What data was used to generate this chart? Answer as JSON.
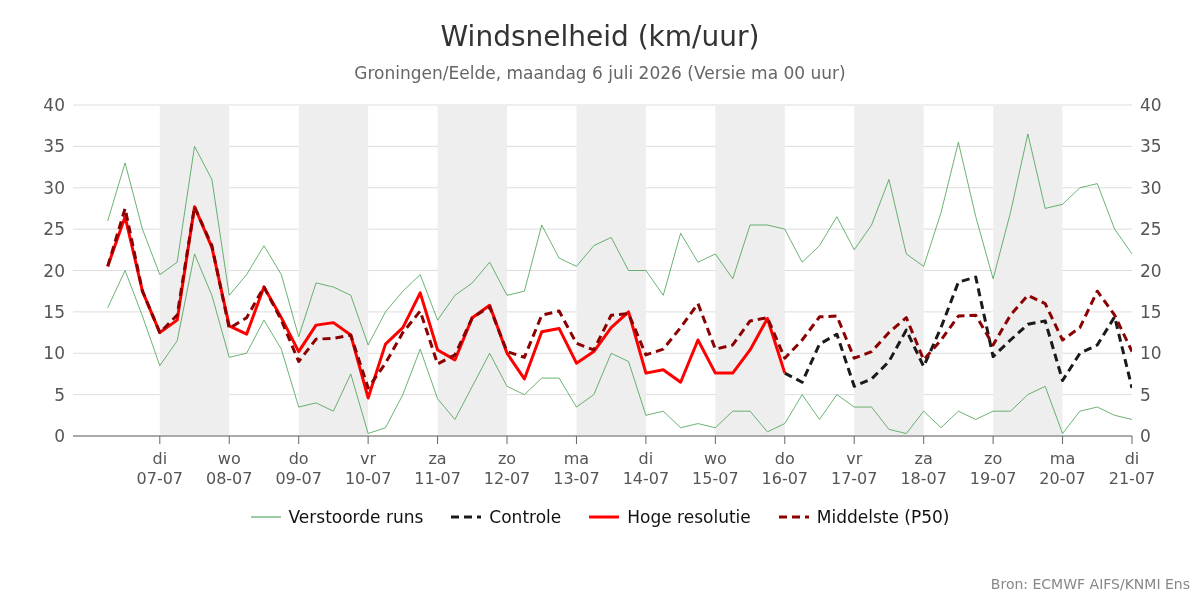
{
  "chart_data": {
    "type": "line",
    "title": "Windsnelheid (km/uur)",
    "subtitle": "Groningen/Eelde, maandag  6 juli 2026 (Versie ma 00 uur)",
    "x": [
      "2026-07-06T06:00",
      "2026-07-06T12:00",
      "2026-07-06T18:00",
      "2026-07-07T00:00",
      "2026-07-07T06:00",
      "2026-07-07T12:00",
      "2026-07-07T18:00",
      "2026-07-08T00:00",
      "2026-07-08T06:00",
      "2026-07-08T12:00",
      "2026-07-08T18:00",
      "2026-07-09T00:00",
      "2026-07-09T06:00",
      "2026-07-09T12:00",
      "2026-07-09T18:00",
      "2026-07-10T00:00",
      "2026-07-10T06:00",
      "2026-07-10T12:00",
      "2026-07-10T18:00",
      "2026-07-11T00:00",
      "2026-07-11T06:00",
      "2026-07-11T12:00",
      "2026-07-11T18:00",
      "2026-07-12T00:00",
      "2026-07-12T06:00",
      "2026-07-12T12:00",
      "2026-07-12T18:00",
      "2026-07-13T00:00",
      "2026-07-13T06:00",
      "2026-07-13T12:00",
      "2026-07-13T18:00",
      "2026-07-14T00:00",
      "2026-07-14T06:00",
      "2026-07-14T12:00",
      "2026-07-14T18:00",
      "2026-07-15T00:00",
      "2026-07-15T06:00",
      "2026-07-15T12:00",
      "2026-07-15T18:00",
      "2026-07-16T00:00",
      "2026-07-16T06:00",
      "2026-07-16T12:00",
      "2026-07-16T18:00",
      "2026-07-17T00:00",
      "2026-07-17T06:00",
      "2026-07-17T12:00",
      "2026-07-17T18:00",
      "2026-07-18T00:00",
      "2026-07-18T06:00",
      "2026-07-18T12:00",
      "2026-07-18T18:00",
      "2026-07-19T00:00",
      "2026-07-19T06:00",
      "2026-07-19T12:00",
      "2026-07-19T18:00",
      "2026-07-20T00:00",
      "2026-07-20T06:00",
      "2026-07-20T12:00",
      "2026-07-20T18:00",
      "2026-07-21T00:00"
    ],
    "series": [
      {
        "name": "Verstoorde runs",
        "color": "#3a9a45",
        "line_style": "solid",
        "values": [
          26,
          33,
          25,
          19.5,
          21,
          35,
          31,
          17,
          19.5,
          23,
          19.5,
          12,
          18.5,
          18,
          17,
          11,
          15,
          17.5,
          19.5,
          14,
          17,
          18.5,
          21,
          17,
          17.5,
          25.5,
          21.5,
          20.5,
          23,
          24,
          20,
          20,
          17,
          24.5,
          21,
          22,
          19,
          25.5,
          25.5,
          25,
          21,
          23,
          26.5,
          22.5,
          25.5,
          31,
          22,
          20.5,
          27,
          35.5,
          26.5,
          19,
          27,
          36.5,
          27.5,
          28,
          30,
          30.5,
          25,
          22
        ]
      },
      {
        "color": "#3a9a45",
        "line_style": "solid",
        "values": [
          15.5,
          20,
          14.5,
          8.5,
          11.5,
          22,
          17,
          9.5,
          10,
          14,
          10.5,
          3.5,
          4,
          3,
          7.5,
          0.3,
          1,
          5,
          10.5,
          4.5,
          2,
          6,
          10,
          6,
          5,
          7,
          7,
          3.5,
          5,
          10,
          9,
          2.5,
          3,
          1,
          1.5,
          1,
          3,
          3,
          0.5,
          1.5,
          5,
          2,
          5,
          3.5,
          3.5,
          0.8,
          0.3,
          3,
          1,
          3,
          2,
          3,
          3,
          5,
          6,
          0.3,
          3,
          3.5,
          2.5,
          2
        ]
      },
      {
        "name": "Controle",
        "color": "#1a1a1a",
        "line_style": "dashed",
        "values": [
          null,
          null,
          null,
          null,
          null,
          null,
          null,
          null,
          null,
          null,
          null,
          null,
          null,
          null,
          null,
          null,
          null,
          null,
          null,
          null,
          null,
          null,
          null,
          null,
          null,
          null,
          null,
          null,
          null,
          null,
          null,
          null,
          null,
          null,
          null,
          null,
          null,
          null,
          null,
          7.6,
          6.5,
          11.1,
          12.3,
          6,
          6.9,
          9,
          12.8,
          8.4,
          13.1,
          18.6,
          19.2,
          9.6,
          11.6,
          13.5,
          13.9,
          6.7,
          10,
          11,
          14.4,
          5.8
        ]
      },
      {
        "name": "Hoge resolutie",
        "color": "#ff0000",
        "line_style": "solid",
        "values": [
          20.5,
          26.5,
          17.5,
          12.5,
          14,
          27.7,
          22.8,
          13.3,
          12.3,
          18,
          14.3,
          10.2,
          13.4,
          13.7,
          12.2,
          4.6,
          11.1,
          13.1,
          17.3,
          10.4,
          9.2,
          14.3,
          15.8,
          10,
          6.9,
          12.6,
          13,
          8.8,
          10.2,
          13.1,
          15,
          7.6,
          8,
          6.5,
          11.6,
          7.6,
          7.6,
          10.4,
          14.2,
          7.6,
          null,
          null,
          null,
          null,
          null,
          null,
          null,
          null,
          null,
          null,
          null,
          null,
          null,
          null,
          null,
          null,
          null,
          null,
          null,
          null
        ]
      },
      {
        "name": "Middelste (P50)",
        "color": "#8b0000",
        "line_style": "dashed",
        "values": [
          20.5,
          27.5,
          17.5,
          12.5,
          14.6,
          27.7,
          23,
          13,
          14.3,
          18,
          14,
          9,
          11.7,
          11.8,
          12.2,
          5.8,
          8.8,
          12.5,
          15.1,
          8.7,
          9.8,
          14.3,
          15.6,
          10.2,
          9.5,
          14.6,
          15.1,
          11.2,
          10.4,
          14.6,
          14.8,
          9.8,
          10.5,
          13.1,
          16,
          10.5,
          11,
          13.9,
          14.3,
          9.4,
          11.6,
          14.4,
          14.5,
          9.4,
          10.2,
          12.5,
          14.3,
          9.2,
          11.6,
          14.5,
          14.6,
          11,
          14.6,
          17,
          16,
          11.6,
          13.1,
          17.5,
          14.6,
          10.2
        ]
      }
    ],
    "xlim": [
      "2026-07-05T18:00",
      "2026-07-21T00:00"
    ],
    "xticks": [
      {
        "value": "2026-07-07",
        "label": "di 07-07"
      },
      {
        "value": "2026-07-08",
        "label": "wo 08-07"
      },
      {
        "value": "2026-07-09",
        "label": "do 09-07"
      },
      {
        "value": "2026-07-10",
        "label": "vr 10-07"
      },
      {
        "value": "2026-07-11",
        "label": "za 11-07"
      },
      {
        "value": "2026-07-12",
        "label": "zo 12-07"
      },
      {
        "value": "2026-07-13",
        "label": "ma 13-07"
      },
      {
        "value": "2026-07-14",
        "label": "di 14-07"
      },
      {
        "value": "2026-07-15",
        "label": "wo 15-07"
      },
      {
        "value": "2026-07-16",
        "label": "do 16-07"
      },
      {
        "value": "2026-07-17",
        "label": "vr 17-07"
      },
      {
        "value": "2026-07-18",
        "label": "za 18-07"
      },
      {
        "value": "2026-07-19",
        "label": "zo 19-07"
      },
      {
        "value": "2026-07-20",
        "label": "ma 20-07"
      },
      {
        "value": "2026-07-21",
        "label": "di 21-07"
      }
    ],
    "ylim": [
      0,
      40
    ],
    "yticks": [
      0,
      5,
      10,
      15,
      20,
      25,
      30,
      35,
      40
    ],
    "y2lim": [
      0,
      40
    ],
    "y2ticks": [
      0,
      5,
      10,
      15,
      20,
      25,
      30,
      35,
      40
    ],
    "bands": [
      {
        "axis": "x",
        "from": "2026-07-07",
        "to": "2026-07-08",
        "color": "#eeeeee"
      },
      {
        "axis": "x",
        "from": "2026-07-09",
        "to": "2026-07-10",
        "color": "#eeeeee"
      },
      {
        "axis": "x",
        "from": "2026-07-11",
        "to": "2026-07-12",
        "color": "#eeeeee"
      },
      {
        "axis": "x",
        "from": "2026-07-13",
        "to": "2026-07-14",
        "color": "#eeeeee"
      },
      {
        "axis": "x",
        "from": "2026-07-15",
        "to": "2026-07-16",
        "color": "#eeeeee"
      },
      {
        "axis": "x",
        "from": "2026-07-17",
        "to": "2026-07-18",
        "color": "#eeeeee"
      },
      {
        "axis": "x",
        "from": "2026-07-19",
        "to": "2026-07-20",
        "color": "#eeeeee"
      }
    ],
    "grid": "y",
    "legend": "bottom",
    "marker": "none",
    "annotations": [
      "Bron: ECMWF AIFS/KNMI Ens"
    ]
  }
}
